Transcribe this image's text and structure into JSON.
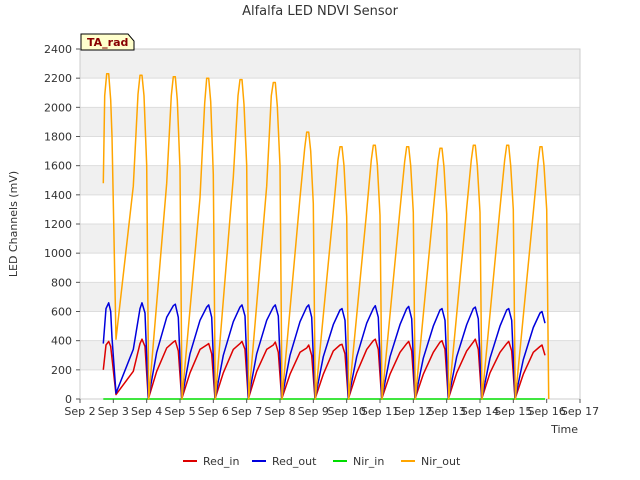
{
  "chart_data": {
    "type": "line",
    "title": "Alfalfa LED NDVI Sensor",
    "xlabel": "Time",
    "ylabel": "LED Channels (mV)",
    "ylim": [
      0,
      2400
    ],
    "yticks": [
      0,
      200,
      400,
      600,
      800,
      1000,
      1200,
      1400,
      1600,
      1800,
      2000,
      2200,
      2400
    ],
    "xlim": [
      2,
      17
    ],
    "xticks": [
      2,
      3,
      4,
      5,
      6,
      7,
      8,
      9,
      10,
      11,
      12,
      13,
      14,
      15,
      16,
      17
    ],
    "xtick_labels": [
      "Sep 2",
      "Sep 3",
      "Sep 4",
      "Sep 5",
      "Sep 6",
      "Sep 7",
      "Sep 8",
      "Sep 9",
      "Sep 10",
      "Sep 11",
      "Sep 12",
      "Sep 13",
      "Sep 14",
      "Sep 15",
      "Sep 16",
      "Sep 17"
    ],
    "grid": true,
    "annotation": "TA_rad",
    "legend_position": "bottom",
    "series": [
      {
        "name": "Red_in",
        "color": "#dd0000",
        "x": [
          2.7,
          2.78,
          2.86,
          2.92,
          2.96,
          3.08,
          3.6,
          3.8,
          3.86,
          3.95,
          4.05,
          4.3,
          4.6,
          4.8,
          4.86,
          4.95,
          5.05,
          5.3,
          5.6,
          5.8,
          5.86,
          5.95,
          6.05,
          6.3,
          6.6,
          6.8,
          6.86,
          6.95,
          7.05,
          7.3,
          7.6,
          7.8,
          7.86,
          7.95,
          8.05,
          8.3,
          8.6,
          8.8,
          8.86,
          8.95,
          9.05,
          9.3,
          9.6,
          9.8,
          9.86,
          9.95,
          10.05,
          10.3,
          10.6,
          10.8,
          10.86,
          10.95,
          11.05,
          11.3,
          11.6,
          11.8,
          11.86,
          11.95,
          12.05,
          12.3,
          12.6,
          12.8,
          12.86,
          12.95,
          13.05,
          13.3,
          13.6,
          13.8,
          13.86,
          13.95,
          14.05,
          14.3,
          14.6,
          14.8,
          14.86,
          14.95,
          15.05,
          15.3,
          15.6,
          15.8,
          15.86,
          15.95
        ],
        "y": [
          200,
          370,
          395,
          360,
          280,
          30,
          190,
          380,
          410,
          360,
          0,
          190,
          350,
          390,
          400,
          330,
          0,
          180,
          340,
          370,
          380,
          310,
          0,
          180,
          340,
          380,
          395,
          340,
          0,
          190,
          340,
          370,
          390,
          320,
          0,
          170,
          320,
          350,
          370,
          300,
          0,
          170,
          330,
          370,
          375,
          310,
          0,
          180,
          340,
          400,
          410,
          340,
          0,
          170,
          320,
          380,
          395,
          330,
          0,
          170,
          320,
          390,
          400,
          340,
          0,
          180,
          330,
          390,
          410,
          340,
          0,
          180,
          320,
          380,
          395,
          330,
          0,
          170,
          320,
          360,
          370,
          300
        ]
      },
      {
        "name": "Red_out",
        "color": "#0000dd",
        "x": [
          2.7,
          2.78,
          2.86,
          2.92,
          2.96,
          3.08,
          3.6,
          3.8,
          3.86,
          3.95,
          4.05,
          4.3,
          4.6,
          4.8,
          4.86,
          4.95,
          5.05,
          5.3,
          5.6,
          5.8,
          5.86,
          5.95,
          6.05,
          6.3,
          6.6,
          6.8,
          6.86,
          6.95,
          7.05,
          7.3,
          7.6,
          7.8,
          7.86,
          7.95,
          8.05,
          8.3,
          8.6,
          8.8,
          8.86,
          8.95,
          9.05,
          9.3,
          9.6,
          9.8,
          9.86,
          9.95,
          10.05,
          10.3,
          10.6,
          10.8,
          10.86,
          10.95,
          11.05,
          11.3,
          11.6,
          11.8,
          11.86,
          11.95,
          12.05,
          12.3,
          12.6,
          12.8,
          12.86,
          12.95,
          13.05,
          13.3,
          13.6,
          13.8,
          13.86,
          13.95,
          14.05,
          14.3,
          14.6,
          14.8,
          14.86,
          14.95,
          15.05,
          15.3,
          15.6,
          15.8,
          15.86,
          15.95
        ],
        "y": [
          380,
          620,
          660,
          600,
          420,
          40,
          340,
          620,
          660,
          590,
          0,
          320,
          560,
          640,
          650,
          560,
          0,
          310,
          540,
          630,
          645,
          560,
          0,
          300,
          530,
          630,
          645,
          570,
          0,
          310,
          540,
          630,
          645,
          570,
          0,
          300,
          530,
          630,
          645,
          560,
          0,
          290,
          510,
          610,
          620,
          540,
          0,
          290,
          520,
          620,
          640,
          560,
          0,
          290,
          510,
          620,
          635,
          550,
          0,
          280,
          500,
          610,
          620,
          540,
          0,
          290,
          510,
          620,
          630,
          550,
          0,
          280,
          500,
          610,
          620,
          540,
          0,
          270,
          490,
          590,
          600,
          520
        ]
      },
      {
        "name": "Nir_in",
        "color": "#00dd00",
        "x": [
          2.7,
          15.95
        ],
        "y": [
          0,
          0
        ]
      },
      {
        "name": "Nir_out",
        "color": "#ffa500",
        "x": [
          2.7,
          2.74,
          2.8,
          2.86,
          2.92,
          2.96,
          3.08,
          3.6,
          3.74,
          3.8,
          3.86,
          3.92,
          4.0,
          4.06,
          4.6,
          4.74,
          4.8,
          4.86,
          4.92,
          5.0,
          5.06,
          5.6,
          5.74,
          5.8,
          5.86,
          5.92,
          6.0,
          6.06,
          6.6,
          6.74,
          6.8,
          6.86,
          6.92,
          7.0,
          7.06,
          7.6,
          7.74,
          7.8,
          7.86,
          7.92,
          8.0,
          8.06,
          8.6,
          8.74,
          8.8,
          8.86,
          8.92,
          9.0,
          9.06,
          9.6,
          9.74,
          9.8,
          9.86,
          9.92,
          10.0,
          10.06,
          10.6,
          10.74,
          10.8,
          10.86,
          10.92,
          11.0,
          11.06,
          11.6,
          11.74,
          11.8,
          11.86,
          11.92,
          12.0,
          12.06,
          12.6,
          12.74,
          12.8,
          12.86,
          12.92,
          13.0,
          13.06,
          13.6,
          13.74,
          13.8,
          13.86,
          13.92,
          14.0,
          14.06,
          14.6,
          14.74,
          14.8,
          14.86,
          14.92,
          15.0,
          15.06,
          15.6,
          15.74,
          15.8,
          15.86,
          15.92,
          16.0,
          16.06
        ],
        "y": [
          1480,
          2080,
          2230,
          2230,
          2050,
          1800,
          410,
          1460,
          2090,
          2220,
          2220,
          2080,
          1600,
          0,
          1480,
          2080,
          2210,
          2210,
          2050,
          1580,
          0,
          1380,
          2030,
          2200,
          2200,
          2040,
          1540,
          0,
          1520,
          2080,
          2190,
          2190,
          2020,
          1600,
          0,
          1460,
          2080,
          2170,
          2170,
          2010,
          1600,
          0,
          1380,
          1720,
          1830,
          1830,
          1700,
          1340,
          0,
          1290,
          1640,
          1730,
          1730,
          1600,
          1250,
          0,
          1290,
          1640,
          1740,
          1740,
          1610,
          1260,
          0,
          1300,
          1630,
          1730,
          1730,
          1600,
          1280,
          0,
          1300,
          1630,
          1720,
          1720,
          1590,
          1270,
          0,
          1310,
          1640,
          1740,
          1740,
          1600,
          1280,
          0,
          1310,
          1640,
          1740,
          1740,
          1600,
          1300,
          0,
          1280,
          1620,
          1730,
          1730,
          1600,
          1300,
          0
        ]
      }
    ]
  }
}
